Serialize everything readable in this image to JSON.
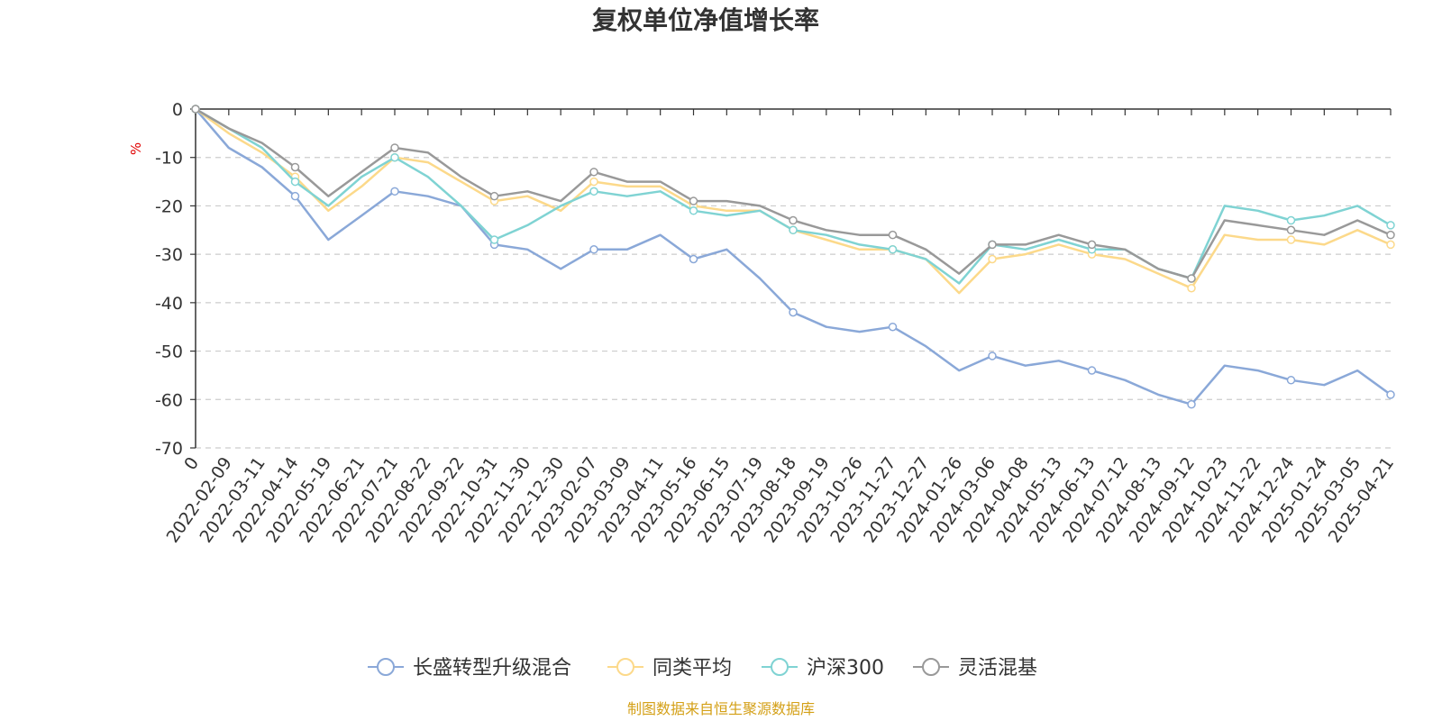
{
  "chart_data": {
    "type": "line",
    "title": "复权单位净值增长率",
    "ylabel": "%",
    "ylim": [
      -70,
      0
    ],
    "yticks": [
      "0",
      "-10",
      "-20",
      "-30",
      "-40",
      "-50",
      "-60",
      "-70"
    ],
    "ytick_values": [
      0,
      -10,
      -20,
      -30,
      -40,
      -50,
      -60,
      -70
    ],
    "grid": true,
    "legend_position": "bottom",
    "source": "制图数据来自恒生聚源数据库",
    "x": [
      "0",
      "2022-02-09",
      "2022-03-11",
      "2022-04-14",
      "2022-05-19",
      "2022-06-21",
      "2022-07-21",
      "2022-08-22",
      "2022-09-22",
      "2022-10-31",
      "2022-11-30",
      "2022-12-30",
      "2023-02-07",
      "2023-03-09",
      "2023-04-11",
      "2023-05-16",
      "2023-06-15",
      "2023-07-19",
      "2023-08-18",
      "2023-09-19",
      "2023-10-26",
      "2023-11-27",
      "2023-12-27",
      "2024-01-26",
      "2024-03-06",
      "2024-04-08",
      "2024-05-13",
      "2024-06-13",
      "2024-07-12",
      "2024-08-13",
      "2024-09-12",
      "2024-10-23",
      "2024-11-22",
      "2024-12-24",
      "2025-01-24",
      "2025-03-05",
      "2025-04-21"
    ],
    "series": [
      {
        "name": "长盛转型升级混合",
        "color": "#8aa8d8",
        "values": [
          0,
          -8,
          -12,
          -18,
          -27,
          -22,
          -17,
          -18,
          -20,
          -28,
          -29,
          -33,
          -29,
          -29,
          -26,
          -31,
          -29,
          -35,
          -42,
          -45,
          -46,
          -45,
          -49,
          -54,
          -51,
          -53,
          -52,
          -54,
          -56,
          -59,
          -61,
          -53,
          -54,
          -56,
          -57,
          -54,
          -59
        ]
      },
      {
        "name": "同类平均",
        "color": "#fcd98a",
        "values": [
          0,
          -5,
          -9,
          -14,
          -21,
          -16,
          -10,
          -11,
          -15,
          -19,
          -18,
          -21,
          -15,
          -16,
          -16,
          -20,
          -21,
          -21,
          -25,
          -27,
          -29,
          -29,
          -31,
          -38,
          -31,
          -30,
          -28,
          -30,
          -31,
          -34,
          -37,
          -26,
          -27,
          -27,
          -28,
          -25,
          -28
        ]
      },
      {
        "name": "沪深300",
        "color": "#7fd3d3",
        "values": [
          0,
          -4,
          -8,
          -15,
          -20,
          -14,
          -10,
          -14,
          -20,
          -27,
          -24,
          -20,
          -17,
          -18,
          -17,
          -21,
          -22,
          -21,
          -25,
          -26,
          -28,
          -29,
          -31,
          -36,
          -28,
          -29,
          -27,
          -29,
          -29,
          -33,
          -35,
          -20,
          -21,
          -23,
          -22,
          -20,
          -24
        ]
      },
      {
        "name": "灵活混基",
        "color": "#999999",
        "values": [
          0,
          -4,
          -7,
          -12,
          -18,
          -13,
          -8,
          -9,
          -14,
          -18,
          -17,
          -19,
          -13,
          -15,
          -15,
          -19,
          -19,
          -20,
          -23,
          -25,
          -26,
          -26,
          -29,
          -34,
          -28,
          -28,
          -26,
          -28,
          -29,
          -33,
          -35,
          -23,
          -24,
          -25,
          -26,
          -23,
          -26
        ]
      }
    ]
  }
}
